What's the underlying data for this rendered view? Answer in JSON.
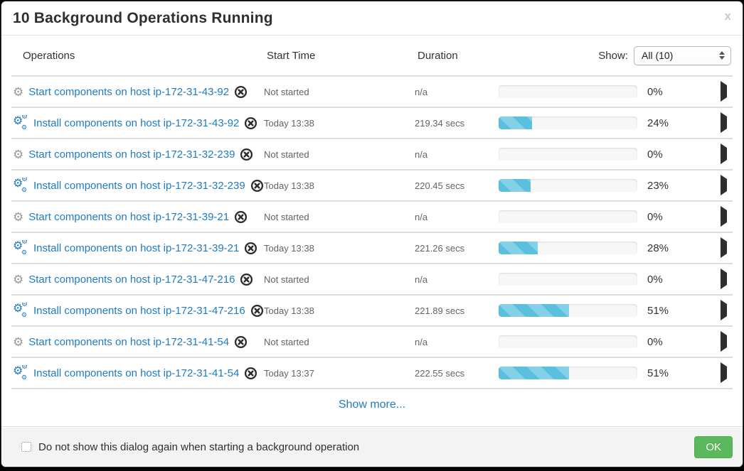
{
  "dialog": {
    "title": "10 Background Operations Running",
    "close_glyph": "x"
  },
  "table": {
    "headers": {
      "operations": "Operations",
      "start_time": "Start Time",
      "duration": "Duration"
    },
    "show_label": "Show:",
    "show_selected": "All (10)"
  },
  "rows": [
    {
      "icon": "gear",
      "name": "Start components on host ip-172-31-43-92",
      "start_time": "Not started",
      "duration": "n/a",
      "percent": 0,
      "percent_label": "0%"
    },
    {
      "icon": "cogs",
      "name": "Install components on host ip-172-31-43-92",
      "start_time": "Today 13:38",
      "duration": "219.34 secs",
      "percent": 24,
      "percent_label": "24%"
    },
    {
      "icon": "gear",
      "name": "Start components on host ip-172-31-32-239",
      "start_time": "Not started",
      "duration": "n/a",
      "percent": 0,
      "percent_label": "0%"
    },
    {
      "icon": "cogs",
      "name": "Install components on host ip-172-31-32-239",
      "start_time": "Today 13:38",
      "duration": "220.45 secs",
      "percent": 23,
      "percent_label": "23%"
    },
    {
      "icon": "gear",
      "name": "Start components on host ip-172-31-39-21",
      "start_time": "Not started",
      "duration": "n/a",
      "percent": 0,
      "percent_label": "0%"
    },
    {
      "icon": "cogs",
      "name": "Install components on host ip-172-31-39-21",
      "start_time": "Today 13:38",
      "duration": "221.26 secs",
      "percent": 28,
      "percent_label": "28%"
    },
    {
      "icon": "gear",
      "name": "Start components on host ip-172-31-47-216",
      "start_time": "Not started",
      "duration": "n/a",
      "percent": 0,
      "percent_label": "0%"
    },
    {
      "icon": "cogs",
      "name": "Install components on host ip-172-31-47-216",
      "start_time": "Today 13:38",
      "duration": "221.89 secs",
      "percent": 51,
      "percent_label": "51%"
    },
    {
      "icon": "gear",
      "name": "Start components on host ip-172-31-41-54",
      "start_time": "Not started",
      "duration": "n/a",
      "percent": 0,
      "percent_label": "0%"
    },
    {
      "icon": "cogs",
      "name": "Install components on host ip-172-31-41-54",
      "start_time": "Today 13:37",
      "duration": "222.55 secs",
      "percent": 51,
      "percent_label": "51%"
    }
  ],
  "show_more_label": "Show more...",
  "footer": {
    "checkbox_label": "Do not show this dialog again when starting a background operation",
    "checkbox_checked": false,
    "ok_label": "OK"
  },
  "colors": {
    "link": "#1e7bc4",
    "progress_fill": "#5bc0de",
    "ok_bg": "#5cb85c",
    "ok_border": "#4cae4c"
  }
}
